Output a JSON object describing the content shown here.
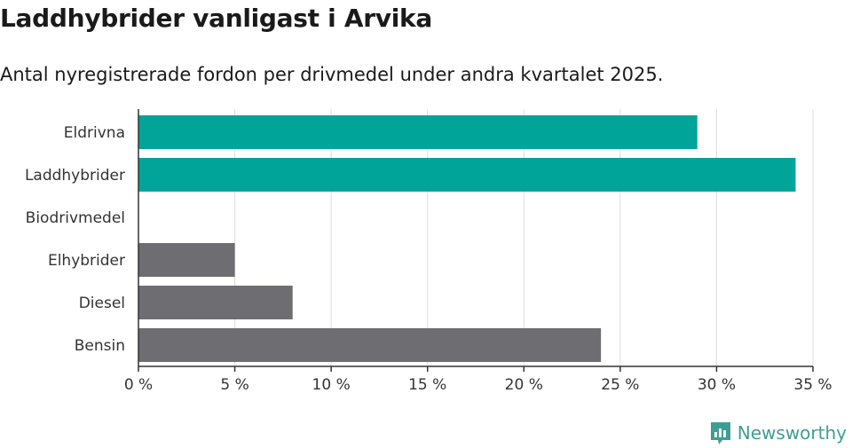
{
  "title": "Laddhybrider vanligast i Arvika",
  "subtitle": "Antal nyregistrerade fordon per drivmedel under andra kvartalet 2025.",
  "brand": {
    "name": "Newsworthy",
    "icon": "newsworthy-logo-icon"
  },
  "colors": {
    "highlight": "#00a499",
    "default": "#6d6d72",
    "grid": "#dcdcdc",
    "axis": "#333333"
  },
  "chart_data": {
    "type": "bar",
    "orientation": "horizontal",
    "categories": [
      "Eldrivna",
      "Laddhybrider",
      "Biodrivmedel",
      "Elhybrider",
      "Diesel",
      "Bensin"
    ],
    "values": [
      29,
      34.1,
      0,
      5,
      8,
      24
    ],
    "highlighted": [
      true,
      true,
      false,
      false,
      false,
      false
    ],
    "xlim": [
      0,
      35
    ],
    "xticks": [
      "0 %",
      "5 %",
      "10 %",
      "15 %",
      "20 %",
      "25 %",
      "30 %",
      "35 %"
    ],
    "grid": true
  }
}
